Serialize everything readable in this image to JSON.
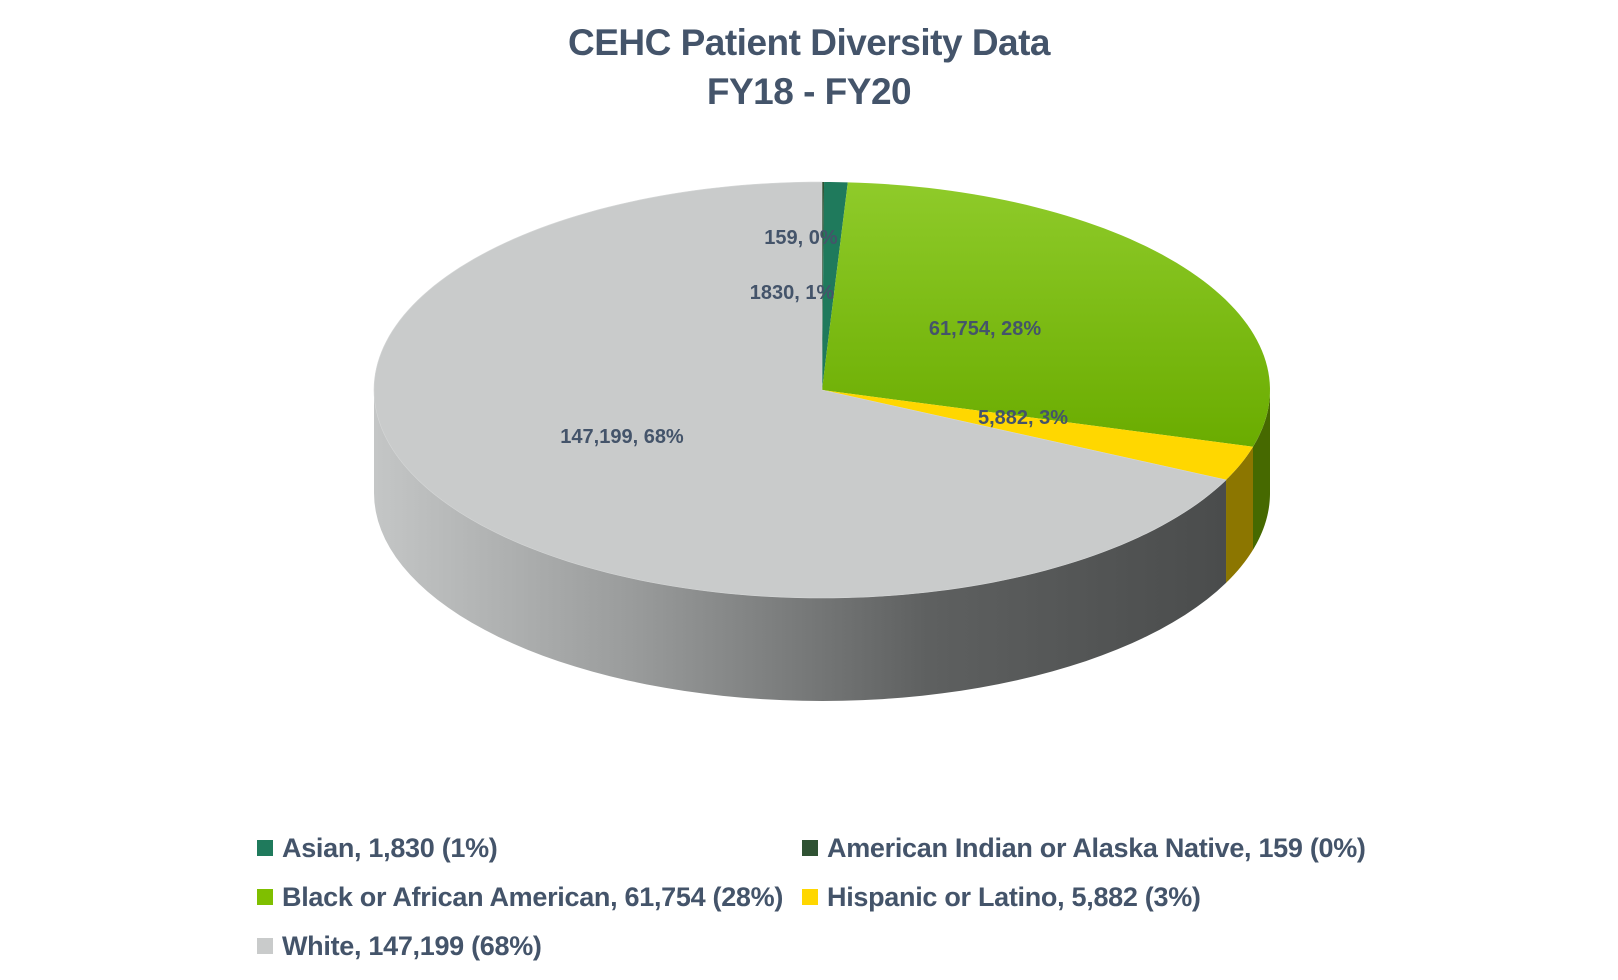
{
  "title_line1": "CEHC Patient Diversity Data",
  "title_line2": "FY18 - FY20",
  "chart_data": {
    "type": "pie",
    "title": "CEHC Patient Diversity Data FY18 - FY20",
    "is_3d": true,
    "series": [
      {
        "name": "American Indian or Alaska Native",
        "value": 159,
        "percent": 0,
        "color": "#2f5233",
        "data_label": "159, 0%",
        "legend": "American Indian or Alaska Native, 159 (0%)"
      },
      {
        "name": "Asian",
        "value": 1830,
        "percent": 1,
        "color": "#1f7a5c",
        "data_label": "1830, 1%",
        "legend": "Asian, 1,830 (1%)"
      },
      {
        "name": "Black or African American",
        "value": 61754,
        "percent": 28,
        "color": "#7fbf00",
        "data_label": "61,754, 28%",
        "legend": "Black or African American, 61,754 (28%)"
      },
      {
        "name": "Hispanic or Latino",
        "value": 5882,
        "percent": 3,
        "color": "#ffd700",
        "data_label": "5,882, 3%",
        "legend": "Hispanic or Latino, 5,882 (3%)"
      },
      {
        "name": "White",
        "value": 147199,
        "percent": 68,
        "color": "#c9cbcb",
        "data_label": "147,199, 68%",
        "legend": "White, 147,199 (68%)"
      }
    ],
    "legend_position": "bottom"
  }
}
